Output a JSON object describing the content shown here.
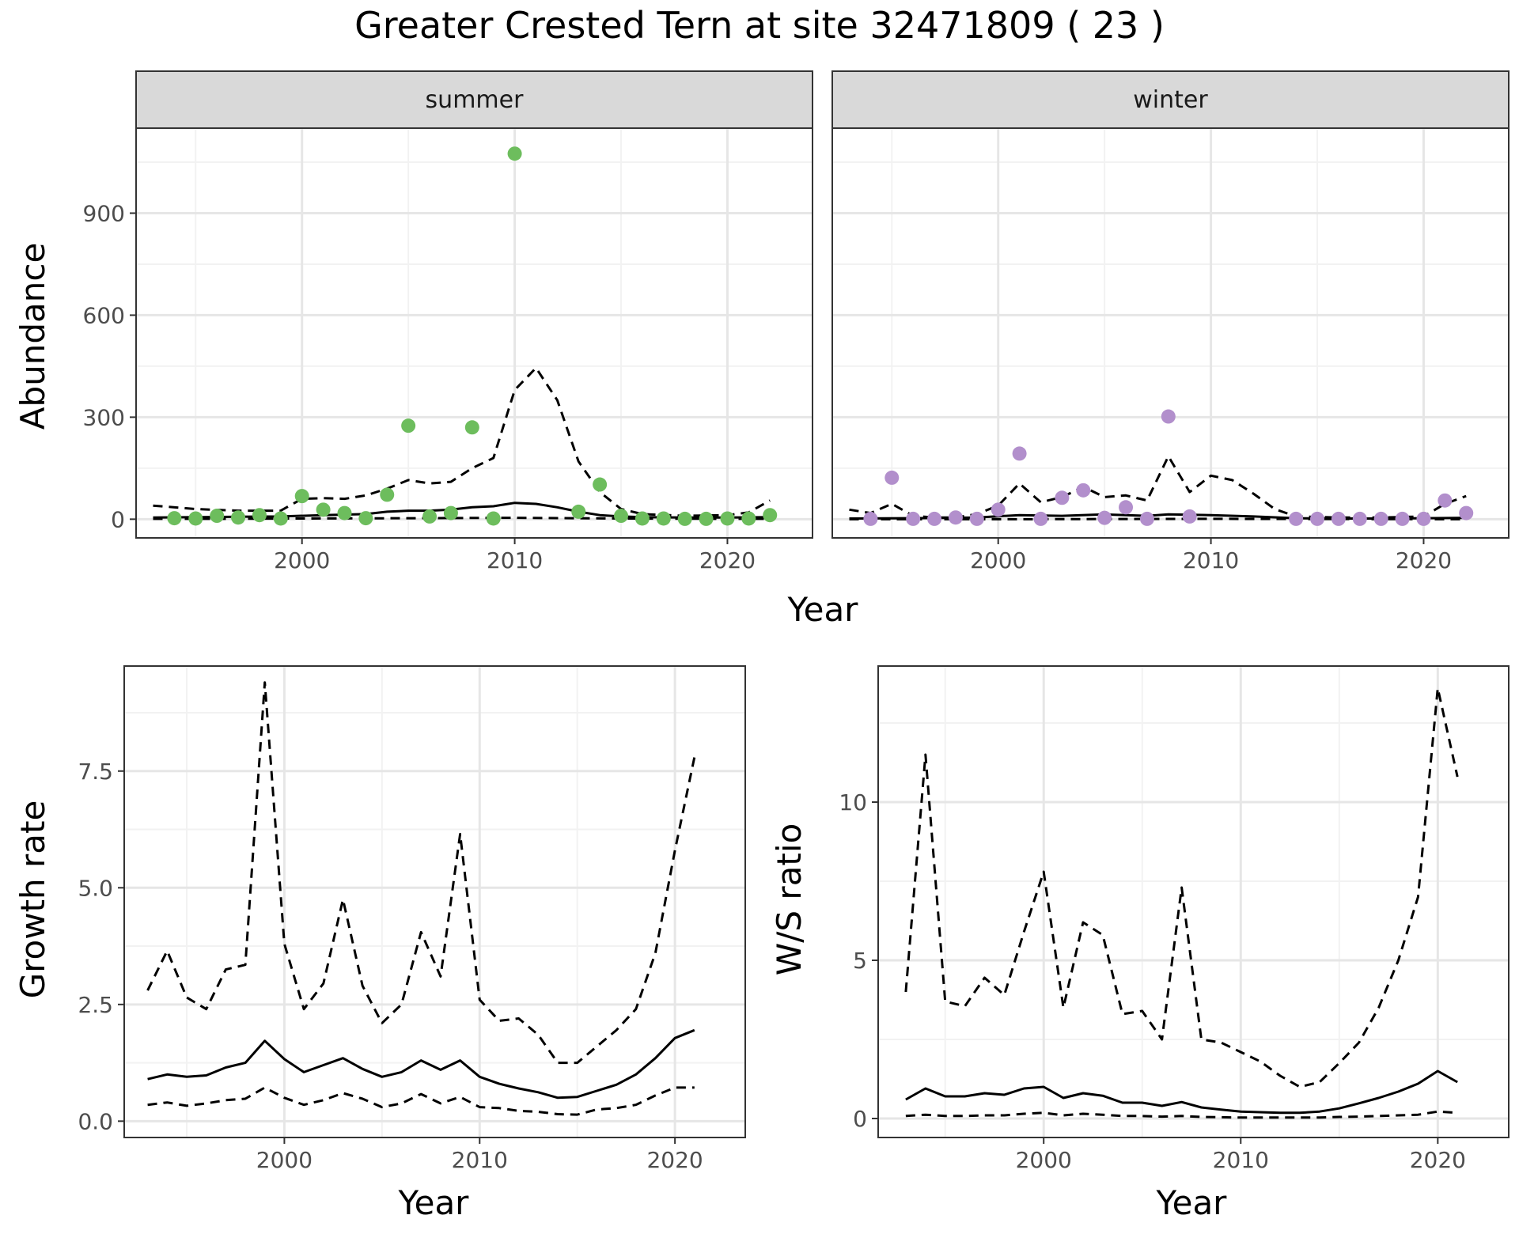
{
  "title": "Greater Crested Tern at site 32471809 ( 23 )",
  "colors": {
    "summer_points": "#6dbd5d",
    "winter_points": "#b28fcc",
    "line": "#000000",
    "grid_major": "#e6e6e6",
    "grid_minor": "#f2f2f2",
    "strip_bg": "#d9d9d9",
    "panel_border": "#333333"
  },
  "chart_data": [
    {
      "type": "scatter",
      "facets": [
        "summer",
        "winter"
      ],
      "xlabel": "Year",
      "ylabel": "Abundance",
      "xlim": [
        1992.2,
        2024.0
      ],
      "ylim": [
        -55,
        1150
      ],
      "xticks": [
        2000,
        2010,
        2020
      ],
      "yticks": [
        0,
        300,
        600,
        900
      ],
      "grid": true,
      "panels": [
        {
          "name": "summer",
          "points": {
            "x": [
              1994,
              1995,
              1996,
              1997,
              1998,
              1999,
              2000,
              2001,
              2002,
              2003,
              2004,
              2005,
              2006,
              2007,
              2008,
              2009,
              2010,
              2013,
              2014,
              2015,
              2016,
              2017,
              2018,
              2019,
              2020,
              2021,
              2022
            ],
            "y": [
              3,
              2,
              10,
              5,
              12,
              2,
              68,
              28,
              18,
              3,
              72,
              275,
              8,
              18,
              270,
              2,
              1075,
              22,
              102,
              10,
              2,
              2,
              1,
              1,
              2,
              2,
              12
            ]
          },
          "mid": {
            "x": [
              1993,
              1995,
              1997,
              1999,
              2001,
              2003,
              2004,
              2005,
              2006,
              2007,
              2008,
              2009,
              2010,
              2011,
              2012,
              2013,
              2014,
              2015,
              2016,
              2018,
              2020,
              2022
            ],
            "y": [
              5,
              6,
              7,
              8,
              12,
              15,
              22,
              25,
              25,
              28,
              35,
              38,
              48,
              45,
              35,
              22,
              12,
              8,
              6,
              5,
              5,
              6
            ]
          },
          "upper": {
            "x": [
              1993,
              1995,
              1997,
              1999,
              2000,
              2001,
              2002,
              2003,
              2004,
              2005,
              2006,
              2007,
              2008,
              2009,
              2010,
              2011,
              2012,
              2013,
              2014,
              2015,
              2016,
              2018,
              2020,
              2021,
              2022
            ],
            "y": [
              40,
              30,
              25,
              25,
              60,
              62,
              60,
              70,
              90,
              115,
              105,
              110,
              150,
              180,
              380,
              445,
              350,
              170,
              80,
              30,
              15,
              10,
              12,
              20,
              55
            ]
          },
          "lower": {
            "x": [
              1993,
              1996,
              2000,
              2005,
              2010,
              2015,
              2020,
              2022
            ],
            "y": [
              1,
              1,
              2,
              3,
              4,
              2,
              1,
              1
            ]
          }
        },
        {
          "name": "winter",
          "points": {
            "x": [
              1994,
              1995,
              1996,
              1997,
              1998,
              1999,
              2000,
              2001,
              2002,
              2003,
              2004,
              2005,
              2006,
              2007,
              2008,
              2009,
              2014,
              2015,
              2016,
              2017,
              2018,
              2019,
              2020,
              2021,
              2022
            ],
            "y": [
              1,
              122,
              1,
              1,
              5,
              1,
              28,
              193,
              1,
              63,
              85,
              4,
              35,
              1,
              302,
              8,
              1,
              1,
              1,
              1,
              1,
              1,
              1,
              55,
              18
            ]
          },
          "mid": {
            "x": [
              1993,
              1996,
              1999,
              2001,
              2003,
              2005,
              2007,
              2008,
              2010,
              2012,
              2014,
              2016,
              2018,
              2020,
              2022
            ],
            "y": [
              2,
              3,
              5,
              12,
              10,
              14,
              10,
              14,
              12,
              8,
              3,
              2,
              2,
              3,
              4
            ]
          },
          "upper": {
            "x": [
              1993,
              1994,
              1995,
              1996,
              1997,
              1998,
              1999,
              2000,
              2001,
              2002,
              2003,
              2004,
              2005,
              2006,
              2007,
              2008,
              2009,
              2010,
              2011,
              2012,
              2013,
              2014,
              2016,
              2018,
              2020,
              2021,
              2022
            ],
            "y": [
              28,
              18,
              45,
              10,
              5,
              5,
              15,
              40,
              105,
              50,
              65,
              95,
              65,
              70,
              55,
              185,
              80,
              128,
              115,
              75,
              30,
              8,
              5,
              5,
              8,
              45,
              68
            ]
          },
          "lower": {
            "x": [
              1993,
              2000,
              2010,
              2022
            ],
            "y": [
              0,
              0,
              1,
              0
            ]
          }
        }
      ]
    },
    {
      "type": "line",
      "xlabel": "Year",
      "ylabel": "Growth rate",
      "xlim": [
        1991.8,
        2023.6
      ],
      "ylim": [
        -0.35,
        9.75
      ],
      "xticks": [
        2000,
        2010,
        2020
      ],
      "yticks": [
        0.0,
        2.5,
        5.0,
        7.5
      ],
      "ytick_labels": [
        "0.0",
        "2.5",
        "5.0",
        "7.5"
      ],
      "grid": true,
      "x": [
        1993,
        1994,
        1995,
        1996,
        1997,
        1998,
        1999,
        2000,
        2001,
        2002,
        2003,
        2004,
        2005,
        2006,
        2007,
        2008,
        2009,
        2010,
        2011,
        2012,
        2013,
        2014,
        2015,
        2016,
        2017,
        2018,
        2019,
        2020,
        2021
      ],
      "series": [
        {
          "style": "solid",
          "values": [
            0.9,
            1.0,
            0.95,
            0.98,
            1.15,
            1.25,
            1.72,
            1.33,
            1.05,
            1.2,
            1.35,
            1.12,
            0.95,
            1.05,
            1.3,
            1.1,
            1.3,
            0.95,
            0.8,
            0.7,
            0.62,
            0.5,
            0.52,
            0.65,
            0.78,
            1.0,
            1.35,
            1.78,
            1.95
          ]
        },
        {
          "style": "dashed",
          "values": [
            2.8,
            3.65,
            2.65,
            2.4,
            3.25,
            3.35,
            9.4,
            3.8,
            2.4,
            2.95,
            4.75,
            2.9,
            2.1,
            2.5,
            4.05,
            3.1,
            6.15,
            2.6,
            2.15,
            2.2,
            1.85,
            1.25,
            1.25,
            1.6,
            1.95,
            2.4,
            3.6,
            5.8,
            7.8
          ]
        },
        {
          "style": "dashed",
          "values": [
            0.35,
            0.4,
            0.33,
            0.38,
            0.45,
            0.48,
            0.72,
            0.5,
            0.35,
            0.45,
            0.6,
            0.48,
            0.3,
            0.38,
            0.58,
            0.38,
            0.52,
            0.3,
            0.28,
            0.22,
            0.2,
            0.15,
            0.14,
            0.25,
            0.28,
            0.35,
            0.55,
            0.72,
            0.72
          ]
        }
      ]
    },
    {
      "type": "line",
      "xlabel": "Year",
      "ylabel": "W/S ratio",
      "xlim": [
        1991.6,
        2023.6
      ],
      "ylim": [
        -0.6,
        14.3
      ],
      "xticks": [
        2000,
        2010,
        2020
      ],
      "yticks": [
        0,
        5,
        10
      ],
      "ytick_labels": [
        "0",
        "5",
        "10"
      ],
      "grid": true,
      "x": [
        1993,
        1994,
        1995,
        1996,
        1997,
        1998,
        1999,
        2000,
        2001,
        2002,
        2003,
        2004,
        2005,
        2006,
        2007,
        2008,
        2009,
        2010,
        2011,
        2012,
        2013,
        2014,
        2015,
        2016,
        2017,
        2018,
        2019,
        2020,
        2021
      ],
      "series": [
        {
          "style": "solid",
          "values": [
            0.6,
            0.95,
            0.7,
            0.7,
            0.8,
            0.75,
            0.95,
            1.0,
            0.65,
            0.8,
            0.72,
            0.5,
            0.5,
            0.4,
            0.52,
            0.35,
            0.28,
            0.22,
            0.2,
            0.18,
            0.18,
            0.22,
            0.32,
            0.48,
            0.65,
            0.85,
            1.1,
            1.5,
            1.15
          ]
        },
        {
          "style": "dashed",
          "values": [
            4.0,
            11.5,
            3.7,
            3.55,
            4.45,
            3.9,
            5.9,
            7.8,
            3.5,
            6.2,
            5.8,
            3.3,
            3.4,
            2.5,
            7.3,
            2.5,
            2.4,
            2.1,
            1.8,
            1.35,
            1.0,
            1.15,
            1.75,
            2.4,
            3.5,
            5.0,
            7.0,
            13.6,
            10.8
          ]
        },
        {
          "style": "dashed",
          "values": [
            0.08,
            0.12,
            0.08,
            0.08,
            0.1,
            0.1,
            0.15,
            0.18,
            0.1,
            0.15,
            0.12,
            0.08,
            0.08,
            0.06,
            0.08,
            0.05,
            0.04,
            0.03,
            0.03,
            0.03,
            0.03,
            0.03,
            0.05,
            0.06,
            0.08,
            0.1,
            0.12,
            0.22,
            0.18
          ]
        }
      ]
    }
  ]
}
